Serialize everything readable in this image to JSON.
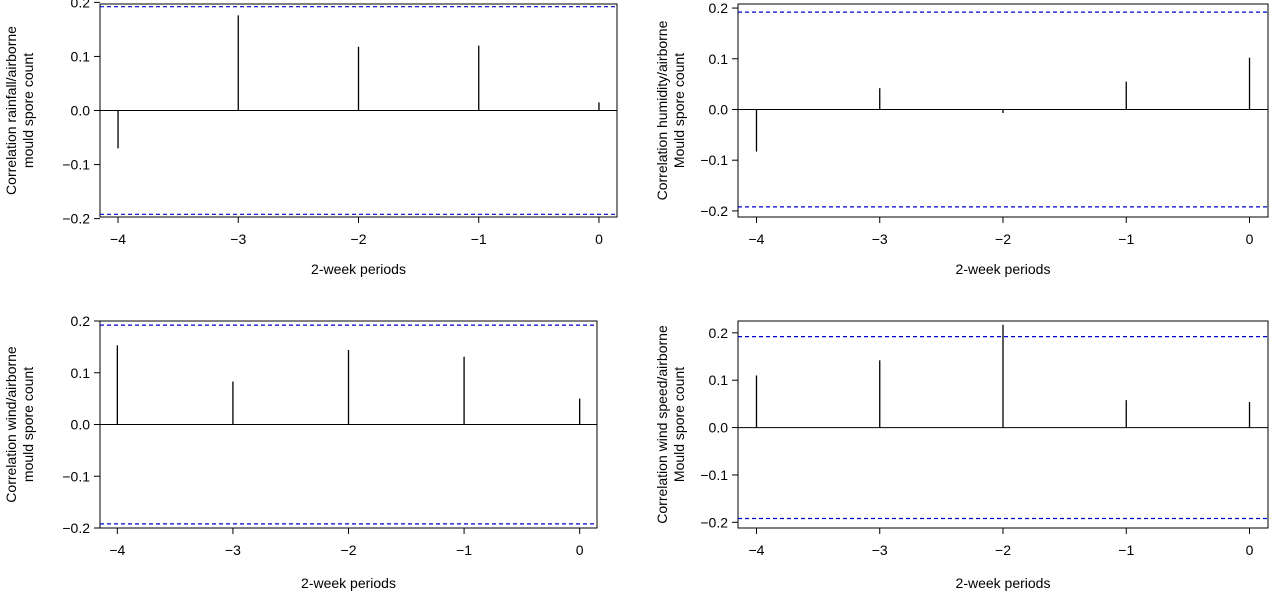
{
  "chart_data": [
    {
      "type": "bar",
      "title": "",
      "xlabel": "2-week periods",
      "ylabel_lines": [
        "Correlation rainfall/airborne",
        "mould spore count"
      ],
      "x": [
        -4,
        -3,
        -2,
        -1,
        0
      ],
      "values": [
        -0.07,
        0.176,
        0.118,
        0.12,
        0.015
      ],
      "confidence_bounds": [
        0.192,
        -0.192
      ],
      "xlim": [
        -4.15,
        0.15
      ],
      "ylim": [
        -0.197,
        0.197
      ],
      "xticks": [
        -4,
        -3,
        -2,
        -1,
        0
      ],
      "xtick_labels": [
        "−4",
        "−3",
        "−2",
        "−1",
        "0"
      ],
      "yticks": [
        -0.2,
        -0.1,
        0.0,
        0.1,
        0.2
      ],
      "ytick_labels": [
        "−0.2",
        "−0.1",
        "0.0",
        "0.1",
        "0.2"
      ],
      "grid": false,
      "colors": {
        "bars": "#000000",
        "bounds": "#0000cc",
        "zero_line": "#000000"
      }
    },
    {
      "type": "bar",
      "title": "",
      "xlabel": "2-week periods",
      "ylabel_lines": [
        "Correlation humidity/airborne",
        "Mould spore count"
      ],
      "x": [
        -4,
        -3,
        -2,
        -1,
        0
      ],
      "values": [
        -0.083,
        0.042,
        -0.007,
        0.055,
        0.102
      ],
      "confidence_bounds": [
        0.192,
        -0.192
      ],
      "xlim": [
        -4.15,
        0.15
      ],
      "ylim": [
        -0.212,
        0.208
      ],
      "xticks": [
        -4,
        -3,
        -2,
        -1,
        0
      ],
      "xtick_labels": [
        "−4",
        "−3",
        "−2",
        "−1",
        "0"
      ],
      "yticks": [
        -0.2,
        -0.1,
        0.0,
        0.1,
        0.2
      ],
      "ytick_labels": [
        "−0.2",
        "−0.1",
        "0.0",
        "0.1",
        "0.2"
      ],
      "grid": false,
      "colors": {
        "bars": "#000000",
        "bounds": "#0000cc",
        "zero_line": "#000000"
      }
    },
    {
      "type": "bar",
      "title": "",
      "xlabel": "2-week periods",
      "ylabel_lines": [
        "Correlation wind/airborne",
        "mould spore count"
      ],
      "x": [
        -4,
        -3,
        -2,
        -1,
        0
      ],
      "values": [
        0.153,
        0.083,
        0.144,
        0.131,
        0.05
      ],
      "confidence_bounds": [
        0.192,
        -0.192
      ],
      "xlim": [
        -4.15,
        0.15
      ],
      "ylim": [
        -0.2,
        0.2
      ],
      "xticks": [
        -4,
        -3,
        -2,
        -1,
        0
      ],
      "xtick_labels": [
        "−4",
        "−3",
        "−2",
        "−1",
        "0"
      ],
      "yticks": [
        -0.2,
        -0.1,
        0.0,
        0.1,
        0.2
      ],
      "ytick_labels": [
        "−0.2",
        "−0.1",
        "0.0",
        "0.1",
        "0.2"
      ],
      "grid": false,
      "colors": {
        "bars": "#000000",
        "bounds": "#0000cc",
        "zero_line": "#000000"
      }
    },
    {
      "type": "bar",
      "title": "",
      "xlabel": "2-week periods",
      "ylabel_lines": [
        "Correlation wind speed/airborne",
        "Mould spore count"
      ],
      "x": [
        -4,
        -3,
        -2,
        -1,
        0
      ],
      "values": [
        0.11,
        0.142,
        0.217,
        0.058,
        0.054
      ],
      "confidence_bounds": [
        0.192,
        -0.192
      ],
      "xlim": [
        -4.15,
        0.15
      ],
      "ylim": [
        -0.212,
        0.225
      ],
      "xticks": [
        -4,
        -3,
        -2,
        -1,
        0
      ],
      "xtick_labels": [
        "−4",
        "−3",
        "−2",
        "−1",
        "0"
      ],
      "yticks": [
        -0.2,
        -0.1,
        0.0,
        0.1,
        0.2
      ],
      "ytick_labels": [
        "−0.2",
        "−0.1",
        "0.0",
        "0.1",
        "0.2"
      ],
      "grid": false,
      "colors": {
        "bars": "#000000",
        "bounds": "#0000cc",
        "zero_line": "#000000"
      }
    }
  ]
}
